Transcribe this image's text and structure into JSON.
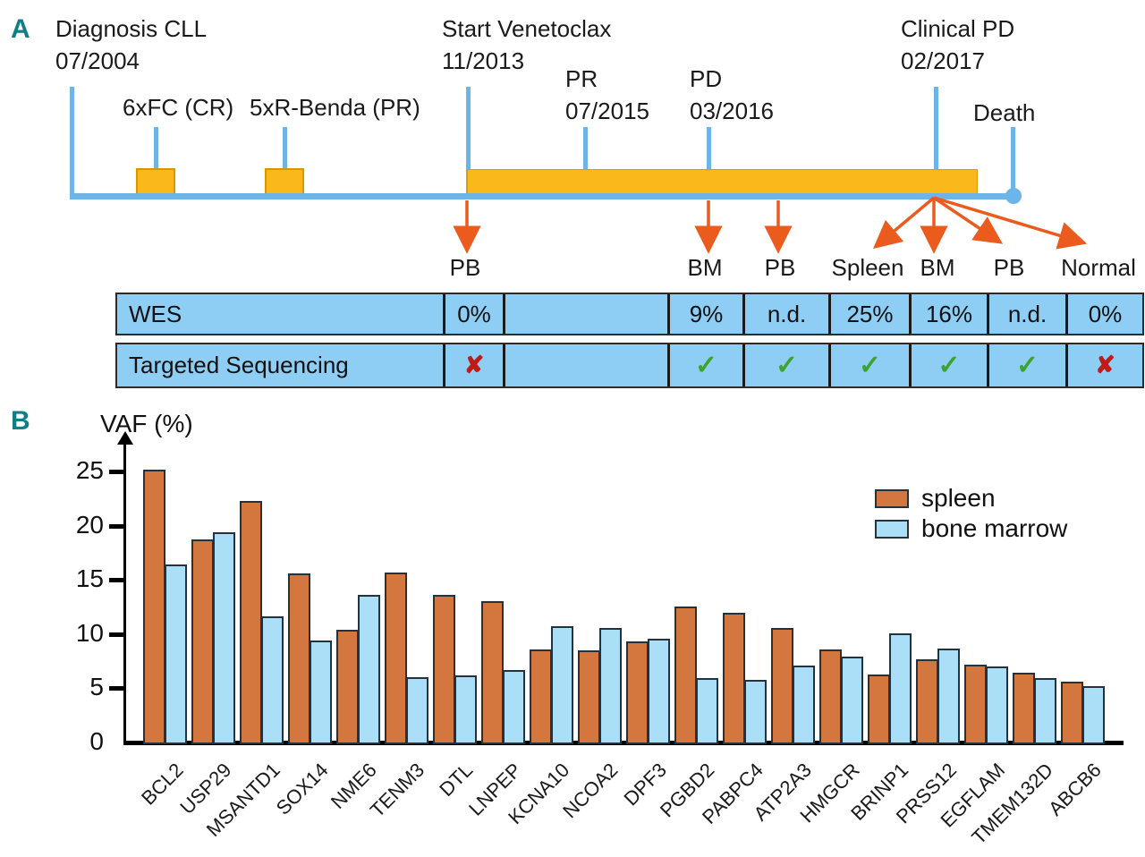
{
  "colors": {
    "panel_label_teal": "#0F7F87",
    "timeline_blue": "#6CB5E8",
    "treatment_yellow": "#FBB81A",
    "arrow_orange": "#EA5B1D",
    "table_blue": "#8ECDF4",
    "check_green": "#3DA32E",
    "cross_red": "#C11B17"
  },
  "panel_a": {
    "label": "A",
    "timeline": {
      "events": [
        {
          "label": "Diagnosis CLL",
          "date": "07/2004"
        },
        {
          "label": "6xFC (CR)"
        },
        {
          "label": "5xR-Benda (PR)"
        },
        {
          "label": "Start Venetoclax",
          "date": "11/2013"
        },
        {
          "label": "PR",
          "date": "07/2015"
        },
        {
          "label": "PD",
          "date": "03/2016"
        },
        {
          "label": "Clinical PD",
          "date": "02/2017"
        },
        {
          "label": "Death"
        }
      ],
      "samples": [
        "PB",
        "BM",
        "PB",
        "Spleen",
        "BM",
        "PB",
        "Normal"
      ]
    },
    "table": {
      "rows": [
        {
          "label": "WES",
          "values": [
            "0%",
            "",
            "9%",
            "n.d.",
            "25%",
            "16%",
            "n.d.",
            "0%"
          ]
        },
        {
          "label": "Targeted Sequencing",
          "values": [
            "cross",
            "",
            "check",
            "check",
            "check",
            "check",
            "check",
            "cross"
          ]
        }
      ]
    }
  },
  "panel_b": {
    "label": "B"
  },
  "chart_data": {
    "type": "bar",
    "title": "",
    "ylabel": "VAF (%)",
    "xlabel": "",
    "categories": [
      "BCL2",
      "USP29",
      "MSANTD1",
      "SOX14",
      "NME6",
      "TENM3",
      "DTL",
      "LNPEP",
      "KCNA10",
      "NCOA2",
      "DPF3",
      "PGBD2",
      "PABPC4",
      "ATP2A3",
      "HMGCR",
      "BRINP1",
      "PRSS12",
      "EGFLAM",
      "TMEM132D",
      "ABCB6"
    ],
    "series": [
      {
        "name": "spleen",
        "color": "#D3773F",
        "values": [
          25.2,
          18.7,
          22.3,
          15.6,
          10.4,
          15.7,
          13.6,
          13.0,
          8.6,
          8.5,
          9.3,
          12.5,
          12.0,
          10.6,
          8.6,
          6.3,
          7.7,
          7.2,
          6.4,
          5.6
        ]
      },
      {
        "name": "bone marrow",
        "color": "#ABDFF8",
        "values": [
          16.4,
          19.4,
          11.6,
          9.4,
          13.6,
          6.0,
          6.2,
          6.7,
          10.7,
          10.6,
          9.6,
          5.9,
          5.8,
          7.1,
          7.9,
          10.1,
          8.7,
          7.0,
          5.9,
          5.2
        ]
      }
    ],
    "ylim": [
      0,
      27
    ],
    "yticks": [
      0,
      5,
      10,
      15,
      20,
      25
    ],
    "legend_position": "top-right",
    "grid": false
  }
}
